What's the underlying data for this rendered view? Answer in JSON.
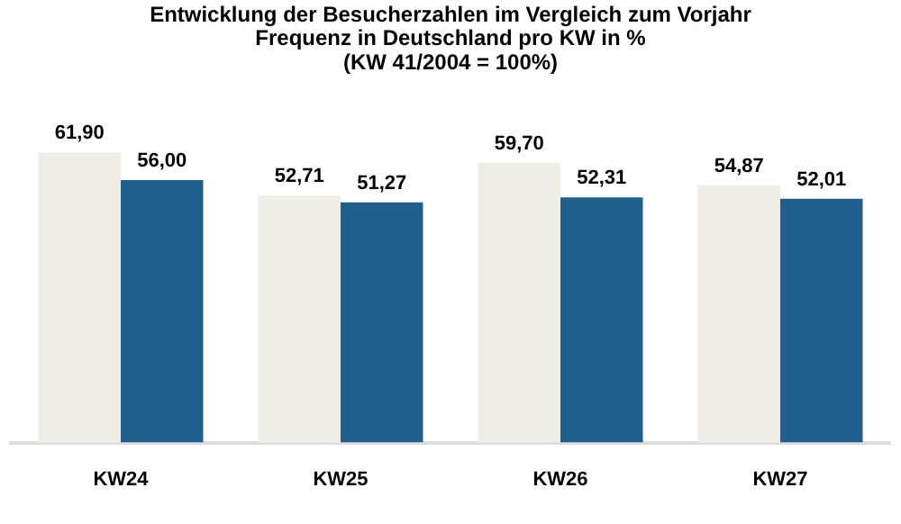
{
  "chart_data": {
    "type": "bar",
    "title": "Entwicklung der Besucherzahlen im Vergleich zum Vorjahr\nFrequenz in Deutschland pro KW in %\n(KW 41/2004 = 100%)",
    "categories": [
      "KW24",
      "KW25",
      "KW26",
      "KW27"
    ],
    "series": [
      {
        "color": "#f0ede6",
        "values": [
          61.9,
          52.71,
          59.7,
          54.87
        ],
        "value_labels": [
          "61,90",
          "52,71",
          "59,70",
          "54,87"
        ]
      },
      {
        "color": "#1f5f8b",
        "values": [
          56.0,
          51.27,
          52.31,
          52.01
        ],
        "value_labels": [
          "56,00",
          "51,27",
          "52,31",
          "52,01"
        ]
      }
    ],
    "grid": false,
    "legend": false
  }
}
